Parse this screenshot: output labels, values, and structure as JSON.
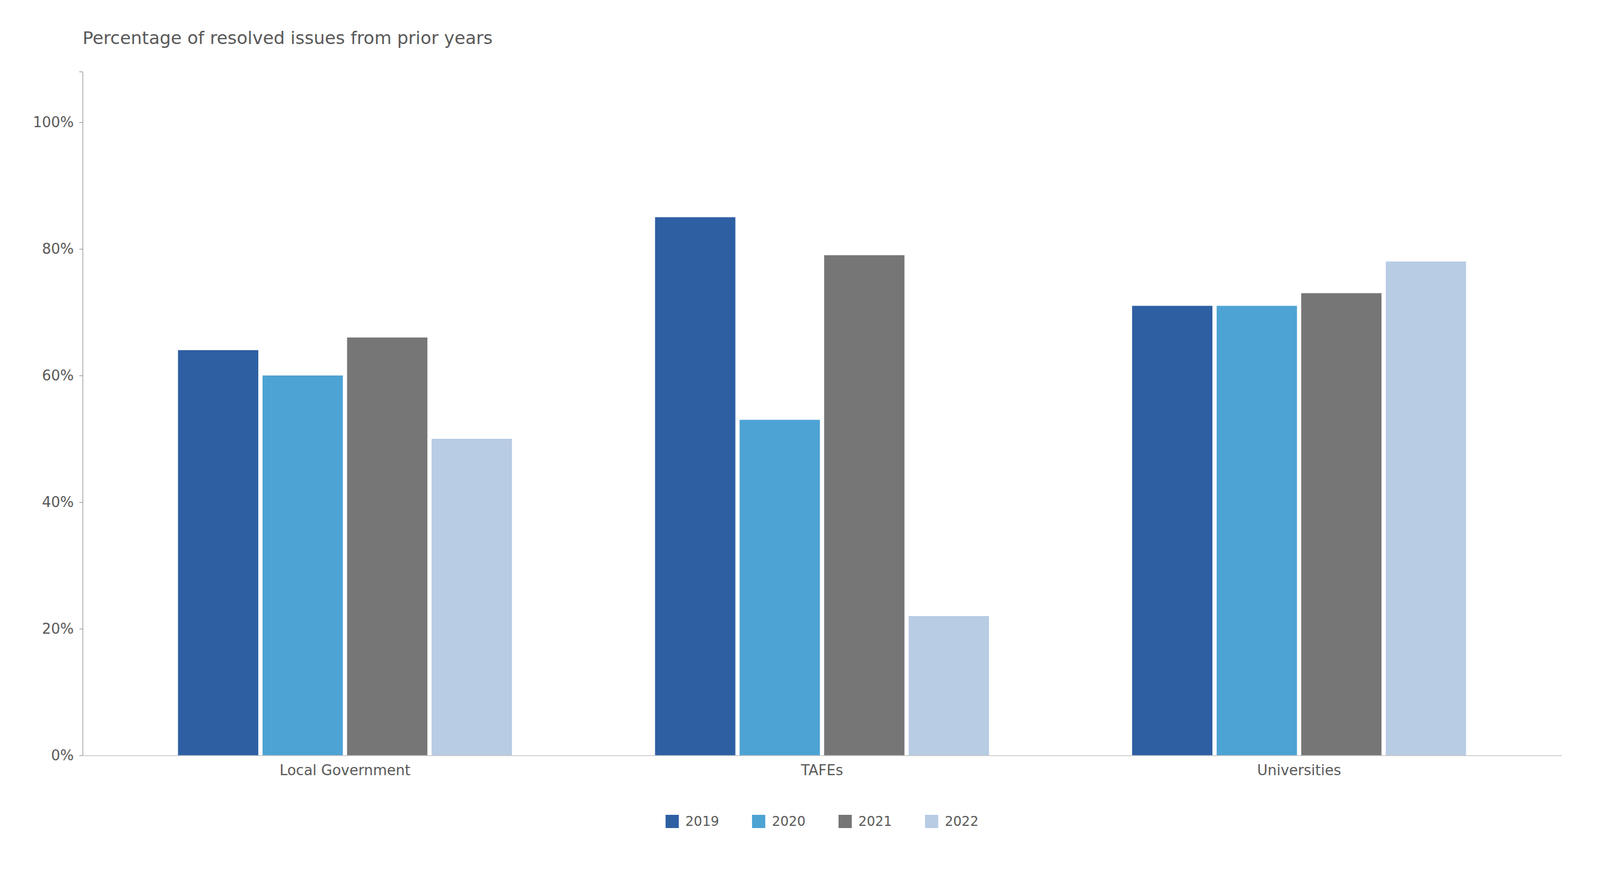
{
  "chart_data": {
    "type": "bar",
    "title": "Percentage of resolved issues from prior years",
    "categories": [
      "Local Government",
      "TAFEs",
      "Universities"
    ],
    "series": [
      {
        "name": "2019",
        "color": "#2E5FA3",
        "values": [
          0.64,
          0.85,
          0.71
        ]
      },
      {
        "name": "2020",
        "color": "#4DA3D4",
        "values": [
          0.6,
          0.53,
          0.71
        ]
      },
      {
        "name": "2021",
        "color": "#767676",
        "values": [
          0.66,
          0.79,
          0.73
        ]
      },
      {
        "name": "2022",
        "color": "#B8CCE4",
        "values": [
          0.5,
          0.22,
          0.78
        ]
      }
    ],
    "ylim": [
      0,
      1.08
    ],
    "yticks": [
      {
        "value": 0,
        "label": "0%"
      },
      {
        "value": 0.2,
        "label": "20%"
      },
      {
        "value": 0.4,
        "label": "40%"
      },
      {
        "value": 0.6,
        "label": "60%"
      },
      {
        "value": 0.8,
        "label": "80%"
      },
      {
        "value": 1,
        "label": "100%"
      }
    ],
    "grid": false,
    "legend": "bottom"
  }
}
